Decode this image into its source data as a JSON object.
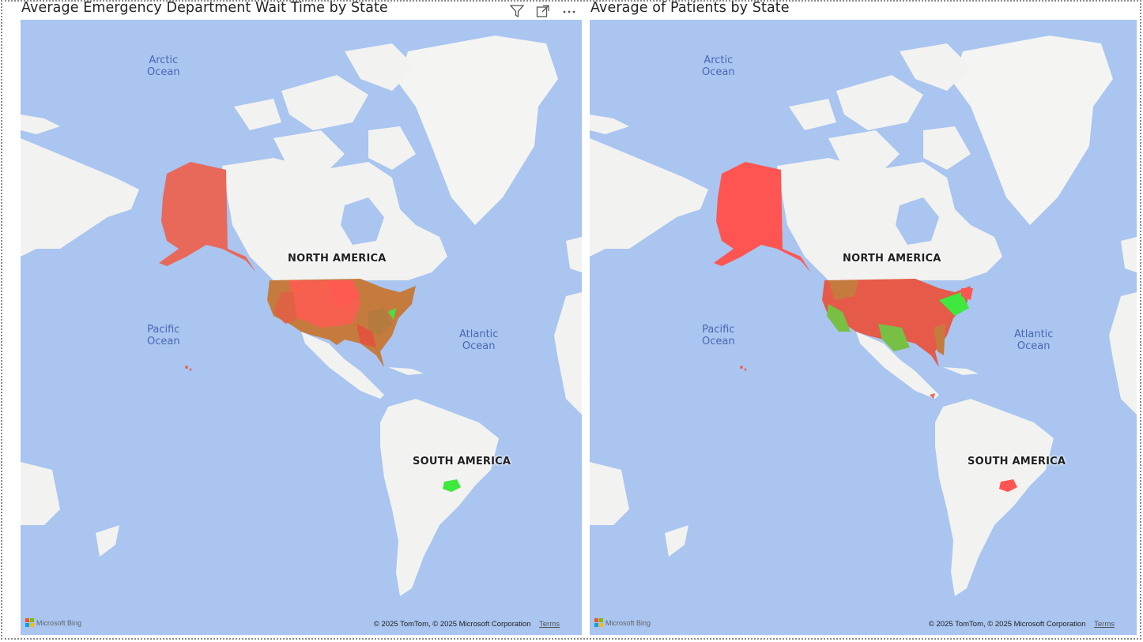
{
  "visuals": [
    {
      "title": "Average Emergency Department Wait Time by State",
      "ocean_labels": {
        "arctic": "Arctic\nOcean",
        "pacific": "Pacific\nOcean",
        "atlantic": "Atlantic\nOcean"
      },
      "continent_labels": {
        "north_america": "NORTH AMERICA",
        "south_america": "SOUTH AMERICA"
      },
      "footer": {
        "provider": "Microsoft Bing",
        "copyright": "© 2025 TomTom, © 2025 Microsoft Corporation",
        "terms": "Terms"
      },
      "header_icons": [
        "filter-icon",
        "focus-mode-icon",
        "more-options-icon"
      ]
    },
    {
      "title": "Average of Patients by State",
      "ocean_labels": {
        "arctic": "Arctic\nOcean",
        "pacific": "Pacific\nOcean",
        "atlantic": "Atlantic\nOcean"
      },
      "continent_labels": {
        "north_america": "NORTH AMERICA",
        "south_america": "SOUTH AMERICA"
      },
      "footer": {
        "provider": "Microsoft Bing",
        "copyright": "© 2025 TomTom, © 2025 Microsoft Corporation",
        "terms": "Terms"
      }
    }
  ],
  "colors": {
    "ocean": "#a9c5f0",
    "land": "#f2f2f0",
    "high": "#ff4d4d",
    "mid": "#c87a3a",
    "low": "#6ecf3f",
    "lowest": "#3ee83e",
    "title_text": "#252423"
  }
}
